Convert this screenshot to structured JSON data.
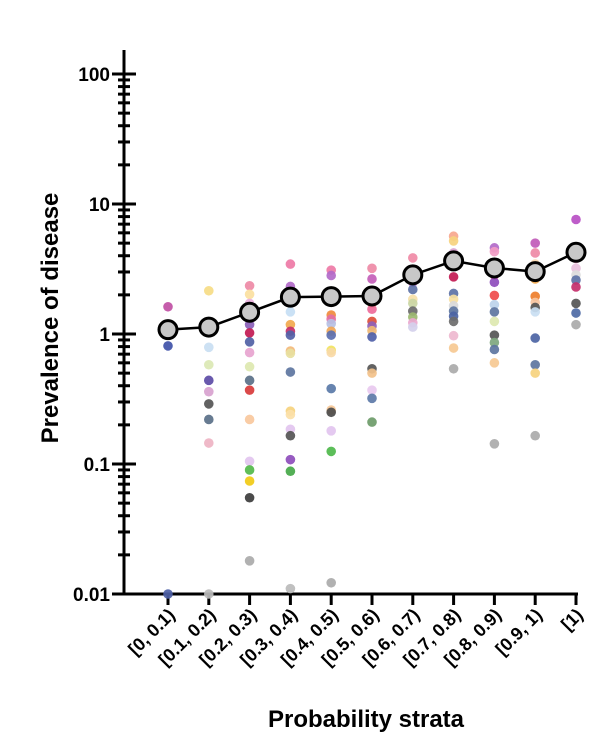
{
  "chart_data": {
    "type": "scatter",
    "xlabel": "Probability strata",
    "ylabel": "Prevalence of disease",
    "yscale": "log",
    "ylim": [
      0.01,
      100
    ],
    "y_ticks": [
      {
        "value": 100,
        "label": "100"
      },
      {
        "value": 10,
        "label": "10"
      },
      {
        "value": 1,
        "label": "1"
      },
      {
        "value": 0.1,
        "label": "0.1"
      },
      {
        "value": 0.01,
        "label": "0.01"
      }
    ],
    "categories": [
      "[0, 0.1)",
      "[0.1, 0.2)",
      "[0.2, 0.3)",
      "[0.3, 0.4)",
      "[0.4, 0.5)",
      "[0.5, 0.6)",
      "[0.6, 0.7)",
      "[0.7, 0.8)",
      "[0.8, 0.9)",
      "[0.9, 1)",
      "[1)"
    ],
    "overall": {
      "values": [
        1.08,
        1.13,
        1.47,
        1.92,
        1.94,
        1.96,
        2.85,
        3.65,
        3.22,
        3.02,
        4.25
      ],
      "style": "gray circles with black outline joined by black line"
    },
    "points": [
      [
        [
          1.62,
          "#c04fa4"
        ],
        [
          0.81,
          "#3f51a8"
        ],
        [
          0.01,
          "#4d5fa6"
        ]
      ],
      [
        [
          2.15,
          "#f6dc86"
        ],
        [
          0.79,
          "#c9def2"
        ],
        [
          0.58,
          "#dbe8b4"
        ],
        [
          0.44,
          "#5c4ba6"
        ],
        [
          0.36,
          "#d8a2cf"
        ],
        [
          0.29,
          "#555555"
        ],
        [
          0.22,
          "#5a7088"
        ],
        [
          0.145,
          "#eeb3c3"
        ],
        [
          0.01,
          "#bbbbbb"
        ]
      ],
      [
        [
          2.35,
          "#ee8aa6"
        ],
        [
          2.02,
          "#fbe0a0"
        ],
        [
          1.72,
          "#e8b0dc"
        ],
        [
          1.33,
          "#f3a64e"
        ],
        [
          1.18,
          "#8a5fb8"
        ],
        [
          1.02,
          "#c21a52"
        ],
        [
          0.87,
          "#5061a5"
        ],
        [
          0.72,
          "#e7a4cf"
        ],
        [
          0.56,
          "#dde8b0"
        ],
        [
          0.44,
          "#5a7088"
        ],
        [
          0.37,
          "#d83a3a"
        ],
        [
          0.22,
          "#f9c89d"
        ],
        [
          0.105,
          "#e2c4ef"
        ],
        [
          0.09,
          "#53b84a"
        ],
        [
          0.074,
          "#f1ca14"
        ],
        [
          0.055,
          "#3c3c3c"
        ],
        [
          0.018,
          "#aaaaaa"
        ]
      ],
      [
        [
          3.45,
          "#ee7aa6"
        ],
        [
          2.32,
          "#b26ac9"
        ],
        [
          1.86,
          "#8c74c6"
        ],
        [
          1.48,
          "#c6def4"
        ],
        [
          1.18,
          "#f2a94e"
        ],
        [
          1.05,
          "#c42f6b"
        ],
        [
          0.98,
          "#5361a7"
        ],
        [
          0.74,
          "#f3b879"
        ],
        [
          0.71,
          "#e7e0a0"
        ],
        [
          0.51,
          "#5d75a0"
        ],
        [
          0.255,
          "#f6d27e"
        ],
        [
          0.24,
          "#fbe0a8"
        ],
        [
          0.185,
          "#e2c4ef"
        ],
        [
          0.165,
          "#555555"
        ],
        [
          0.108,
          "#8e4dbc"
        ],
        [
          0.088,
          "#45a848"
        ],
        [
          0.011,
          "#bbbbbb"
        ]
      ],
      [
        [
          3.1,
          "#ee7aa6"
        ],
        [
          2.82,
          "#b26ac9"
        ],
        [
          1.4,
          "#f08b3c"
        ],
        [
          1.3,
          "#e36fa4"
        ],
        [
          1.2,
          "#b6c0e4"
        ],
        [
          1.05,
          "#f1a554"
        ],
        [
          0.98,
          "#5b6fb0"
        ],
        [
          0.75,
          "#f1e35e"
        ],
        [
          0.72,
          "#f9d9a8"
        ],
        [
          0.38,
          "#5a7aa8"
        ],
        [
          0.26,
          "#f6c796"
        ],
        [
          0.25,
          "#4b4b4b"
        ],
        [
          0.18,
          "#e2c4ef"
        ],
        [
          0.125,
          "#4eb84b"
        ],
        [
          0.0122,
          "#aaaaaa"
        ]
      ],
      [
        [
          3.2,
          "#ee8aa6"
        ],
        [
          2.65,
          "#c35eb8"
        ],
        [
          1.72,
          "#f3a64e"
        ],
        [
          1.55,
          "#ee6b9a"
        ],
        [
          1.25,
          "#dd4f3a"
        ],
        [
          1.15,
          "#8e62b8"
        ],
        [
          1.06,
          "#f0b873"
        ],
        [
          0.95,
          "#4f5fa8"
        ],
        [
          0.54,
          "#555555"
        ],
        [
          0.5,
          "#f2c18a"
        ],
        [
          0.37,
          "#e8c9ef"
        ],
        [
          0.32,
          "#5d7aa8"
        ],
        [
          0.21,
          "#6c9b69"
        ]
      ],
      [
        [
          3.85,
          "#f08aa6"
        ],
        [
          2.5,
          "#bb68c4"
        ],
        [
          2.2,
          "#5d72a6"
        ],
        [
          1.85,
          "#f6e0a8"
        ],
        [
          1.72,
          "#cad6a4"
        ],
        [
          1.5,
          "#6b6b6b"
        ],
        [
          1.35,
          "#9cb870"
        ],
        [
          1.22,
          "#eaa8cf"
        ],
        [
          1.13,
          "#d4d0ec"
        ]
      ],
      [
        [
          5.65,
          "#f7a78e"
        ],
        [
          5.2,
          "#f6d27e"
        ],
        [
          4.2,
          "#d8a2cf"
        ],
        [
          3.4,
          "#e26fa8"
        ],
        [
          2.75,
          "#c21a52"
        ],
        [
          2.05,
          "#5d72a6"
        ],
        [
          1.85,
          "#f8e0a0"
        ],
        [
          1.65,
          "#d9d9d9"
        ],
        [
          1.5,
          "#5d75a0"
        ],
        [
          1.37,
          "#4c64a4"
        ],
        [
          1.25,
          "#6d6d6d"
        ],
        [
          0.97,
          "#eeb8cf"
        ],
        [
          0.78,
          "#f6c993"
        ],
        [
          0.54,
          "#aaaaaa"
        ]
      ],
      [
        [
          4.6,
          "#b26ac9"
        ],
        [
          4.3,
          "#f29cc4"
        ],
        [
          2.85,
          "#c21a52"
        ],
        [
          2.5,
          "#8e4dbc"
        ],
        [
          1.98,
          "#ef4b4b"
        ],
        [
          1.68,
          "#bcd3ea"
        ],
        [
          1.48,
          "#5d75a0"
        ],
        [
          1.25,
          "#dde8b0"
        ],
        [
          0.98,
          "#555555"
        ],
        [
          0.86,
          "#7ea77e"
        ],
        [
          0.76,
          "#5d75a0"
        ],
        [
          0.6,
          "#f6c993"
        ],
        [
          0.143,
          "#aaaaaa"
        ]
      ],
      [
        [
          5.0,
          "#c15bb8"
        ],
        [
          4.2,
          "#ee8aa6"
        ],
        [
          3.45,
          "#fbd8b0"
        ],
        [
          2.65,
          "#f2a94e"
        ],
        [
          1.95,
          "#ee7e2a"
        ],
        [
          1.75,
          "#f6c4a0"
        ],
        [
          1.6,
          "#555555"
        ],
        [
          1.48,
          "#c9def2"
        ],
        [
          0.93,
          "#4c64a4"
        ],
        [
          0.58,
          "#5d75a0"
        ],
        [
          0.5,
          "#f6d27e"
        ],
        [
          0.165,
          "#aaaaaa"
        ]
      ],
      [
        [
          7.6,
          "#b94fc4"
        ],
        [
          3.8,
          "#f2a6cc"
        ],
        [
          3.2,
          "#e8c0dc"
        ],
        [
          2.85,
          "#dcdcdc"
        ],
        [
          2.6,
          "#5d72a6"
        ],
        [
          2.3,
          "#c42f6b"
        ],
        [
          1.72,
          "#555555"
        ],
        [
          1.45,
          "#4e6aa5"
        ],
        [
          1.18,
          "#aaaaaa"
        ]
      ]
    ]
  }
}
